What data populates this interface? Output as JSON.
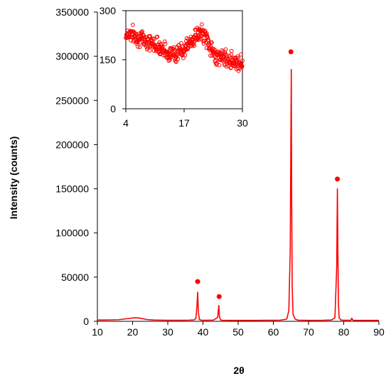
{
  "chart_data": [
    {
      "type": "line",
      "xlabel": "2θ",
      "ylabel": "Intensity (counts)",
      "xlim": [
        10,
        90
      ],
      "ylim": [
        0,
        350000
      ],
      "x_ticks": [
        "10",
        "20",
        "30",
        "40",
        "50",
        "60",
        "70",
        "80",
        "90"
      ],
      "y_ticks": [
        "0",
        "50000",
        "100000",
        "150000",
        "200000",
        "250000",
        "300000",
        "350000"
      ],
      "color": "#ff0000",
      "grid": false,
      "series": [
        {
          "x": [
            10,
            12,
            14,
            16,
            17.5,
            19,
            20,
            21,
            22,
            23,
            24,
            26,
            28,
            30,
            32,
            34,
            36,
            37.5,
            38.0,
            38.3,
            38.5,
            38.7,
            39.0,
            39.5,
            41,
            43,
            44.2,
            44.5,
            44.7,
            45.0,
            45.5,
            48,
            52,
            55,
            58,
            60,
            62,
            63.8,
            64.4,
            64.8,
            65.0,
            65.1,
            65.2,
            65.35,
            65.6,
            66.2,
            67,
            70,
            74,
            76.5,
            77.5,
            78.0,
            78.2,
            78.35,
            78.5,
            78.7,
            79.2,
            80,
            82,
            82.3,
            82.6,
            83,
            85,
            88,
            90
          ],
          "y": [
            1500,
            1500,
            1600,
            1800,
            2500,
            3200,
            3800,
            4000,
            3600,
            2900,
            2000,
            1500,
            1300,
            1200,
            1200,
            1200,
            1300,
            1600,
            3500,
            18000,
            33000,
            10000,
            2000,
            1300,
            1200,
            1400,
            4500,
            18000,
            5000,
            1600,
            1200,
            1100,
            1100,
            1100,
            1200,
            1200,
            1300,
            2500,
            12000,
            80000,
            220000,
            285000,
            150000,
            40000,
            8000,
            2500,
            1300,
            1100,
            1200,
            1500,
            4000,
            60000,
            150000,
            75000,
            20000,
            4000,
            1500,
            1200,
            1200,
            3500,
            1300,
            1100,
            1100,
            1100,
            1100
          ]
        }
      ],
      "markers": [
        {
          "x": 38.5,
          "y": 45000
        },
        {
          "x": 44.6,
          "y": 28000
        },
        {
          "x": 65.0,
          "y": 305000
        },
        {
          "x": 78.2,
          "y": 161000
        }
      ]
    },
    {
      "type": "scatter",
      "xlim": [
        4,
        30
      ],
      "ylim": [
        0,
        300
      ],
      "x_ticks": [
        "4",
        "17",
        "30"
      ],
      "y_ticks": [
        "0",
        "150",
        "300"
      ],
      "marker": "open-circle",
      "color": "#ff0000",
      "trend": {
        "x": [
          4,
          5,
          6,
          8,
          10,
          12,
          13,
          15,
          17,
          19,
          20,
          21,
          22,
          23,
          24,
          25,
          26,
          27,
          28,
          29,
          30
        ],
        "y": [
          225,
          232,
          222,
          212,
          200,
          188,
          172,
          168,
          182,
          212,
          228,
          230,
          215,
          182,
          162,
          160,
          155,
          152,
          147,
          142,
          138
        ]
      }
    }
  ]
}
